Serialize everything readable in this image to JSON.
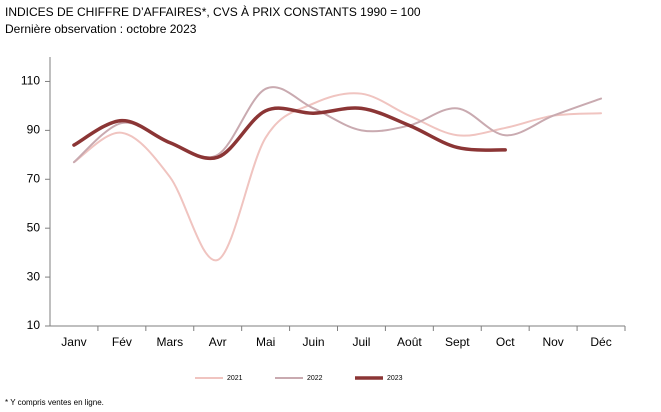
{
  "chart_data": {
    "type": "line",
    "title": "INDICES DE CHIFFRE D’AFFAIRES*, CVS À PRIX CONSTANTS 1990 = 100",
    "subtitle": "Dernière observation : octobre 2023",
    "footnote": "* Y compris ventes en ligne.",
    "categories": [
      "Janv",
      "Fév",
      "Mars",
      "Avr",
      "Mai",
      "Juin",
      "Juil",
      "Août",
      "Sept",
      "Oct",
      "Nov",
      "Déc"
    ],
    "series": [
      {
        "name": "2021",
        "color": "#f0c4c0",
        "width": 2,
        "values": [
          77,
          89,
          71,
          37,
          87,
          101,
          105,
          96,
          88,
          91,
          96,
          97
        ]
      },
      {
        "name": "2022",
        "color": "#c9aab0",
        "width": 2,
        "values": [
          77,
          93,
          85,
          80,
          107,
          99,
          90,
          92,
          99,
          88,
          96,
          103
        ]
      },
      {
        "name": "2023",
        "color": "#8b3535",
        "width": 3.5,
        "values": [
          84,
          94,
          85,
          79,
          98,
          97,
          99,
          92,
          83,
          82,
          null,
          null
        ]
      }
    ],
    "ylim": [
      10,
      120
    ],
    "yticks": [
      10,
      30,
      50,
      70,
      90,
      110
    ],
    "legend": "bottom"
  }
}
